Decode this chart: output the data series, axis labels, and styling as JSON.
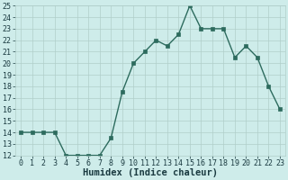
{
  "x": [
    0,
    1,
    2,
    3,
    4,
    5,
    6,
    7,
    8,
    9,
    10,
    11,
    12,
    13,
    14,
    15,
    16,
    17,
    18,
    19,
    20,
    21,
    22,
    23
  ],
  "y": [
    14,
    14,
    14,
    14,
    12,
    12,
    12,
    12,
    13.5,
    17.5,
    20,
    21,
    22,
    21.5,
    22.5,
    25,
    23,
    23,
    23,
    20.5,
    21.5,
    20.5,
    18,
    16
  ],
  "line_color": "#2d6b5e",
  "marker": "s",
  "marker_size": 2.5,
  "bg_color": "#ceecea",
  "grid_color": "#b0cec9",
  "xlabel": "Humidex (Indice chaleur)",
  "ylim": [
    12,
    25
  ],
  "xlim": [
    -0.5,
    23.5
  ],
  "yticks": [
    12,
    13,
    14,
    15,
    16,
    17,
    18,
    19,
    20,
    21,
    22,
    23,
    24,
    25
  ],
  "xticks": [
    0,
    1,
    2,
    3,
    4,
    5,
    6,
    7,
    8,
    9,
    10,
    11,
    12,
    13,
    14,
    15,
    16,
    17,
    18,
    19,
    20,
    21,
    22,
    23
  ],
  "tick_color": "#1a3a40",
  "xlabel_fontsize": 7.5,
  "tick_fontsize": 6,
  "linewidth": 1.0
}
